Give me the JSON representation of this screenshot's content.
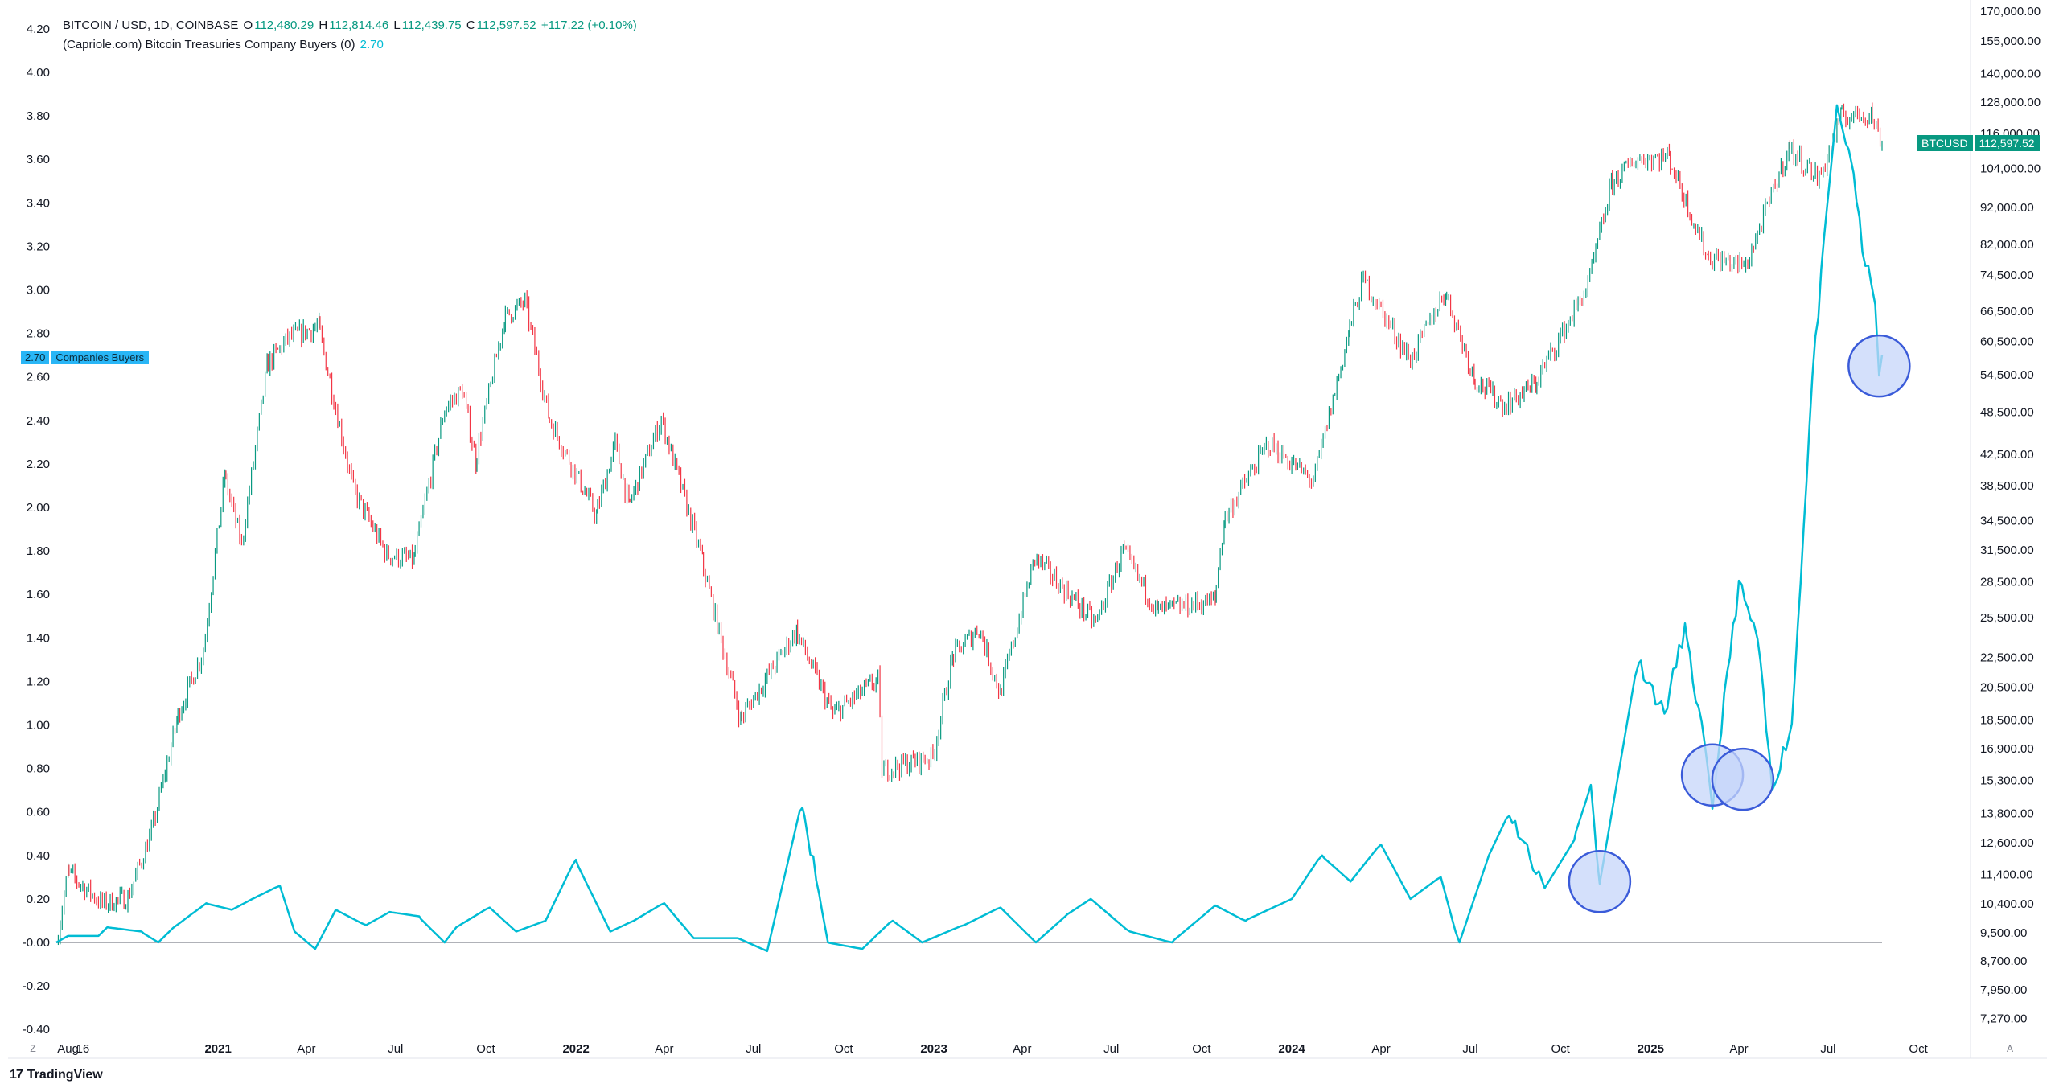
{
  "header": {
    "symbol": "BITCOIN / USD, 1D, COINBASE",
    "open_label": "O",
    "open": "112,480.29",
    "high_label": "H",
    "high": "112,814.46",
    "low_label": "L",
    "low": "112,439.75",
    "close_label": "C",
    "close": "112,597.52",
    "change": "+117.22 (+0.10%)",
    "indicator": "(Capriole.com) Bitcoin Treasuries Company Buyers (0)",
    "indicator_value": "2.70"
  },
  "left_tag": {
    "value": "2.70",
    "label": "Companies Buyers"
  },
  "right_tag": {
    "symbol": "BTCUSD",
    "price": "112,597.52"
  },
  "footer": {
    "brand": "TradingView",
    "logo": "17"
  },
  "corner_buttons": {
    "left": "Z",
    "right": "A"
  },
  "colors": {
    "candle_up": "#089981",
    "candle_down": "#f23645",
    "indicator": "#00bcd4",
    "highlight_fill": "#c5d5fa",
    "highlight_stroke": "#3a5bd9",
    "zero_line": "#9598a1"
  },
  "chart_data": {
    "type": "line",
    "title": "BITCOIN / USD, 1D, COINBASE",
    "right_axis": {
      "scale": "log",
      "ticks": [
        "170,000.00",
        "155,000.00",
        "140,000.00",
        "128,000.00",
        "116,000.00",
        "104,000.00",
        "92,000.00",
        "82,000.00",
        "74,500.00",
        "66,500.00",
        "60,500.00",
        "54,500.00",
        "48,500.00",
        "42,500.00",
        "38,500.00",
        "34,500.00",
        "31,500.00",
        "28,500.00",
        "25,500.00",
        "22,500.00",
        "20,500.00",
        "18,500.00",
        "16,900.00",
        "15,300.00",
        "13,800.00",
        "12,600.00",
        "11,400.00",
        "10,400.00",
        "9,500.00",
        "8,700.00",
        "7,950.00",
        "7,270.00"
      ]
    },
    "left_axis": {
      "ticks": [
        "4.20",
        "4.00",
        "3.80",
        "3.60",
        "3.40",
        "3.20",
        "3.00",
        "2.80",
        "2.60",
        "2.40",
        "2.20",
        "2.00",
        "1.80",
        "1.60",
        "1.40",
        "1.20",
        "1.00",
        "0.80",
        "0.60",
        "0.40",
        "0.20",
        "-0.00",
        "-0.20",
        "-0.40"
      ],
      "range": [
        -0.4,
        4.2
      ]
    },
    "x_axis": {
      "ticks": [
        "Aug",
        "16",
        "2021",
        "Apr",
        "Jul",
        "Oct",
        "2022",
        "Apr",
        "Jul",
        "Oct",
        "2023",
        "Apr",
        "Jul",
        "Oct",
        "2024",
        "Apr",
        "Jul",
        "Oct",
        "2025",
        "Apr",
        "Jul",
        "Oct"
      ],
      "bold_ticks": [
        "2021",
        "2022",
        "2023",
        "2024",
        "2025"
      ]
    },
    "series": [
      {
        "name": "BTCUSD",
        "type": "candlestick",
        "points": [
          [
            "2020-07-20",
            9200
          ],
          [
            "2020-08-01",
            11500
          ],
          [
            "2020-09-05",
            10400
          ],
          [
            "2020-10-01",
            10600
          ],
          [
            "2020-10-25",
            13000
          ],
          [
            "2020-11-20",
            18500
          ],
          [
            "2020-12-17",
            23000
          ],
          [
            "2021-01-08",
            40000
          ],
          [
            "2021-01-25",
            32000
          ],
          [
            "2021-02-20",
            56000
          ],
          [
            "2021-03-13",
            61000
          ],
          [
            "2021-04-14",
            63500
          ],
          [
            "2021-05-19",
            38000
          ],
          [
            "2021-06-22",
            31000
          ],
          [
            "2021-07-20",
            30500
          ],
          [
            "2021-08-20",
            49000
          ],
          [
            "2021-09-07",
            52000
          ],
          [
            "2021-09-21",
            41500
          ],
          [
            "2021-10-20",
            65000
          ],
          [
            "2021-11-10",
            68500
          ],
          [
            "2021-12-04",
            48000
          ],
          [
            "2022-01-22",
            35000
          ],
          [
            "2022-02-10",
            44000
          ],
          [
            "2022-02-24",
            36000
          ],
          [
            "2022-03-29",
            47500
          ],
          [
            "2022-05-10",
            30500
          ],
          [
            "2022-06-18",
            18500
          ],
          [
            "2022-08-14",
            24500
          ],
          [
            "2022-09-20",
            18800
          ],
          [
            "2022-11-05",
            21000
          ],
          [
            "2022-11-09",
            15800
          ],
          [
            "2022-12-31",
            16500
          ],
          [
            "2023-01-20",
            22500
          ],
          [
            "2023-02-16",
            24700
          ],
          [
            "2023-03-10",
            20000
          ],
          [
            "2023-04-14",
            30800
          ],
          [
            "2023-06-15",
            25000
          ],
          [
            "2023-07-13",
            31500
          ],
          [
            "2023-08-17",
            26000
          ],
          [
            "2023-10-15",
            26900
          ],
          [
            "2023-10-24",
            34500
          ],
          [
            "2023-12-08",
            44000
          ],
          [
            "2024-01-23",
            39000
          ],
          [
            "2024-02-28",
            62000
          ],
          [
            "2024-03-14",
            73500
          ],
          [
            "2024-05-01",
            57000
          ],
          [
            "2024-06-06",
            71000
          ],
          [
            "2024-07-05",
            54000
          ],
          [
            "2024-08-05",
            49500
          ],
          [
            "2024-09-06",
            53000
          ],
          [
            "2024-10-29",
            72000
          ],
          [
            "2024-11-22",
            99000
          ],
          [
            "2024-12-17",
            107000
          ],
          [
            "2025-01-20",
            108000
          ],
          [
            "2025-02-28",
            79000
          ],
          [
            "2025-04-08",
            76500
          ],
          [
            "2025-05-22",
            111000
          ],
          [
            "2025-06-22",
            100500
          ],
          [
            "2025-07-14",
            122000
          ],
          [
            "2025-08-14",
            123500
          ],
          [
            "2025-08-25",
            112600
          ]
        ]
      },
      {
        "name": "Companies Buyers",
        "type": "line",
        "points": [
          [
            "2020-07-20",
            0
          ],
          [
            "2020-08-01",
            0.03
          ],
          [
            "2020-09-01",
            0.03
          ],
          [
            "2020-09-10",
            0.07
          ],
          [
            "2020-10-15",
            0.05
          ],
          [
            "2020-11-01",
            0.0
          ],
          [
            "2020-11-20",
            0.08
          ],
          [
            "2020-12-20",
            0.18
          ],
          [
            "2021-01-15",
            0.15
          ],
          [
            "2021-02-05",
            0.2
          ],
          [
            "2021-03-05",
            0.26
          ],
          [
            "2021-03-20",
            0.05
          ],
          [
            "2021-04-10",
            -0.03
          ],
          [
            "2021-05-01",
            0.15
          ],
          [
            "2021-06-01",
            0.08
          ],
          [
            "2021-06-25",
            0.14
          ],
          [
            "2021-07-25",
            0.12
          ],
          [
            "2021-08-20",
            0.0
          ],
          [
            "2021-09-01",
            0.07
          ],
          [
            "2021-10-05",
            0.16
          ],
          [
            "2021-11-01",
            0.05
          ],
          [
            "2021-12-01",
            0.1
          ],
          [
            "2022-01-01",
            0.38
          ],
          [
            "2022-02-05",
            0.05
          ],
          [
            "2022-03-01",
            0.1
          ],
          [
            "2022-04-01",
            0.18
          ],
          [
            "2022-05-01",
            0.02
          ],
          [
            "2022-06-15",
            0.02
          ],
          [
            "2022-07-15",
            -0.04
          ],
          [
            "2022-08-20",
            0.66
          ],
          [
            "2022-09-15",
            0.0
          ],
          [
            "2022-10-20",
            -0.03
          ],
          [
            "2022-11-20",
            0.1
          ],
          [
            "2022-12-20",
            0.0
          ],
          [
            "2023-02-01",
            0.08
          ],
          [
            "2023-03-10",
            0.16
          ],
          [
            "2023-04-15",
            0.0
          ],
          [
            "2023-05-15",
            0.12
          ],
          [
            "2023-06-10",
            0.2
          ],
          [
            "2023-07-20",
            0.05
          ],
          [
            "2023-09-01",
            0.0
          ],
          [
            "2023-10-15",
            0.17
          ],
          [
            "2023-11-15",
            0.1
          ],
          [
            "2024-01-01",
            0.2
          ],
          [
            "2024-02-01",
            0.4
          ],
          [
            "2024-03-01",
            0.28
          ],
          [
            "2024-04-01",
            0.45
          ],
          [
            "2024-05-01",
            0.2
          ],
          [
            "2024-06-01",
            0.3
          ],
          [
            "2024-06-20",
            0.0
          ],
          [
            "2024-07-20",
            0.4
          ],
          [
            "2024-08-10",
            0.6
          ],
          [
            "2024-09-15",
            0.25
          ],
          [
            "2024-10-15",
            0.47
          ],
          [
            "2024-11-01",
            0.72
          ],
          [
            "2024-11-10",
            0.27
          ],
          [
            "2024-12-20",
            1.3
          ],
          [
            "2025-01-15",
            1.05
          ],
          [
            "2025-02-05",
            1.45
          ],
          [
            "2025-02-25",
            0.9
          ],
          [
            "2025-03-05",
            0.62
          ],
          [
            "2025-03-12",
            0.89
          ],
          [
            "2025-04-01",
            1.65
          ],
          [
            "2025-04-20",
            1.4
          ],
          [
            "2025-05-05",
            0.7
          ],
          [
            "2025-05-25",
            1.0
          ],
          [
            "2025-06-15",
            2.6
          ],
          [
            "2025-07-10",
            3.82
          ],
          [
            "2025-07-25",
            3.6
          ],
          [
            "2025-08-05",
            3.2
          ],
          [
            "2025-08-18",
            2.95
          ],
          [
            "2025-08-22",
            2.58
          ],
          [
            "2025-08-25",
            2.7
          ]
        ]
      }
    ],
    "highlights": [
      {
        "date": "2024-11-10",
        "value": 0.28
      },
      {
        "date": "2025-03-05",
        "value": 0.77
      },
      {
        "date": "2025-04-05",
        "value": 0.75
      },
      {
        "date": "2025-08-22",
        "value": 2.65
      }
    ]
  }
}
